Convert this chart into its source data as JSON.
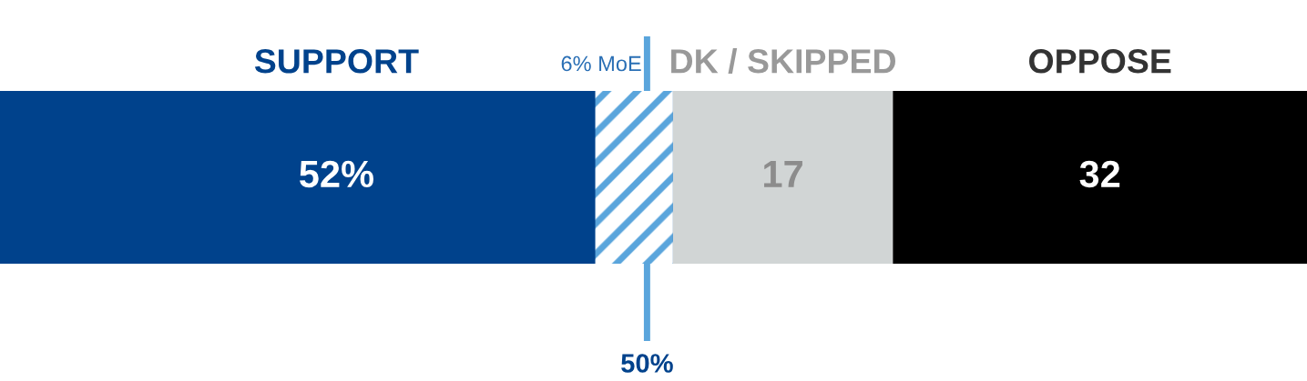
{
  "chart_data": {
    "type": "bar",
    "orientation": "horizontal",
    "stacked": true,
    "categories": [
      null
    ],
    "series": [
      {
        "name": "SUPPORT",
        "color": "#00428c",
        "values": [
          52
        ],
        "value_labels": [
          "52%"
        ]
      },
      {
        "name": "DK / SKIPPED",
        "color": "#d1d5d5",
        "values": [
          17
        ],
        "value_labels": [
          "17"
        ]
      },
      {
        "name": "OPPOSE",
        "color": "#000000",
        "values": [
          32
        ],
        "value_labels": [
          "32"
        ]
      }
    ],
    "xlim": [
      0,
      101
    ],
    "bands": [
      {
        "axis": "x",
        "from": 46,
        "to": 52,
        "label": "6% MoE",
        "color": "#5aa5dc"
      }
    ],
    "ref_lines": [
      {
        "axis": "x",
        "value": 50,
        "label": "50%",
        "color": "#5aa5dc"
      }
    ]
  }
}
